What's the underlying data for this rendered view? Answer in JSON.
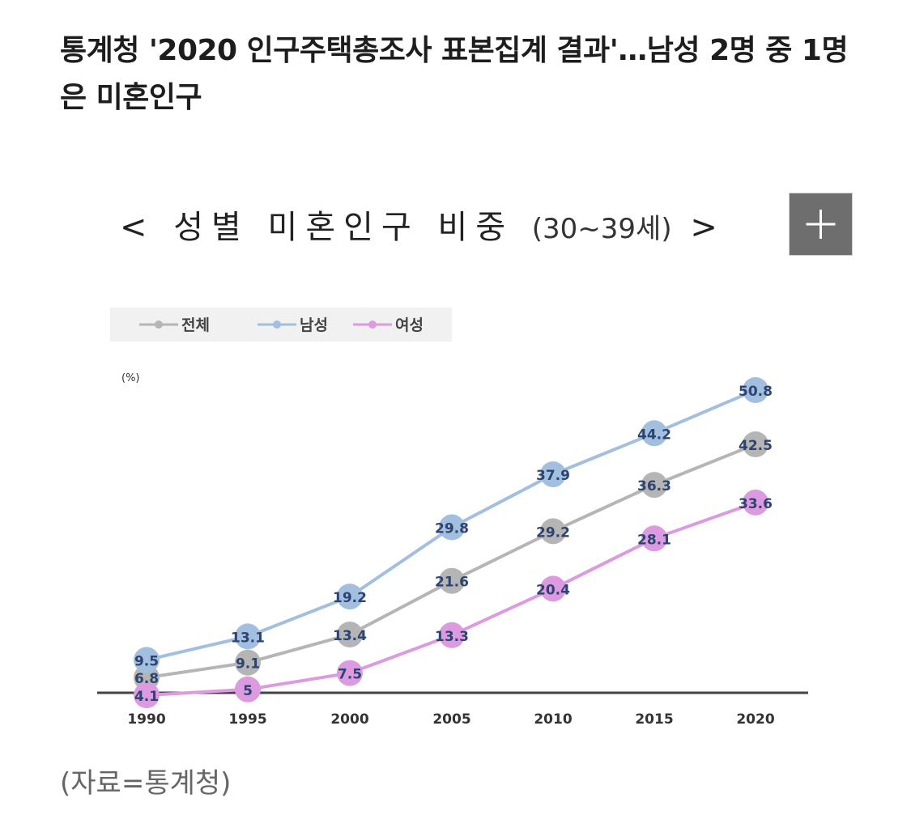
{
  "article": {
    "headline": "통계청 '2020 인구주택총조사 표본집계 결과'…남성 2명 중 1명은 미혼인구",
    "source": "(자료=통계청)"
  },
  "figure": {
    "title_main": "< 성별 미혼인구 비중",
    "title_sub": "(30~39세)",
    "title_end": ">",
    "expand_icon": "plus-icon",
    "expand_color": "#6e6e6e"
  },
  "chart_data": {
    "type": "line",
    "title": "< 성별 미혼인구 비중 (30~39세) >",
    "ylabel": "(%)",
    "xlabel": "",
    "categories": [
      "1990",
      "1995",
      "2000",
      "2005",
      "2010",
      "2015",
      "2020"
    ],
    "ylim": [
      2,
      56
    ],
    "grid": false,
    "legend_position": "top-left",
    "series": [
      {
        "name": "전체",
        "color": "#b5b5b5",
        "values": [
          6.8,
          9.1,
          13.4,
          21.6,
          29.2,
          36.3,
          42.5
        ]
      },
      {
        "name": "남성",
        "color": "#a3bfe0",
        "values": [
          9.5,
          13.1,
          19.2,
          29.8,
          37.9,
          44.2,
          50.8
        ]
      },
      {
        "name": "여성",
        "color": "#dc9ae0",
        "values": [
          4.1,
          5,
          7.5,
          13.3,
          20.4,
          28.1,
          33.6
        ]
      }
    ],
    "data_labels": [
      [
        "6.8",
        "9.1",
        "13.4",
        "21.6",
        "29.2",
        "36.3",
        "42.5"
      ],
      [
        "9.5",
        "13.1",
        "19.2",
        "29.8",
        "37.9",
        "44.2",
        "50.8"
      ],
      [
        "4.1",
        "5",
        "7.5",
        "13.3",
        "20.4",
        "28.1",
        "33.6"
      ]
    ],
    "label_color": "#2e4470"
  }
}
